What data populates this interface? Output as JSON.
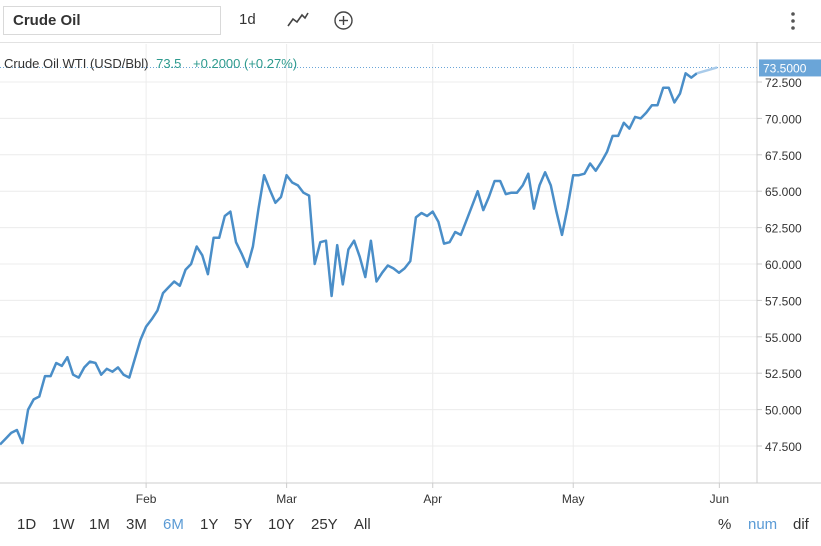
{
  "toolbar": {
    "symbol": "Crude Oil",
    "interval": "1d",
    "icons": [
      "chart-type-icon",
      "add-indicator-icon",
      "more-options-icon"
    ]
  },
  "legend": {
    "name": "Crude Oil WTI (USD/Bbl)",
    "price": "73.5",
    "change": "+0.2000 (+0.27%)"
  },
  "last_price_label": "73.5000",
  "ranges": [
    {
      "label": "1D",
      "active": false
    },
    {
      "label": "1W",
      "active": false
    },
    {
      "label": "1M",
      "active": false
    },
    {
      "label": "3M",
      "active": false
    },
    {
      "label": "6M",
      "active": true
    },
    {
      "label": "1Y",
      "active": false
    },
    {
      "label": "5Y",
      "active": false
    },
    {
      "label": "10Y",
      "active": false
    },
    {
      "label": "25Y",
      "active": false
    },
    {
      "label": "All",
      "active": false
    }
  ],
  "modes": [
    {
      "label": "%",
      "active": false
    },
    {
      "label": "num",
      "active": true
    },
    {
      "label": "dif",
      "active": false
    }
  ],
  "colors": {
    "line": "#4a8ec8",
    "up": "#2e9a8e",
    "price_tag": "#6aa5d8",
    "grid": "#ececec",
    "axis": "#cccccc"
  },
  "chart_data": {
    "type": "line",
    "series_name": "Crude Oil WTI (USD/Bbl)",
    "ylim": [
      45,
      77
    ],
    "yticks": [
      "47.500",
      "50.000",
      "52.500",
      "55.000",
      "57.500",
      "60.000",
      "62.500",
      "65.000",
      "67.500",
      "70.000",
      "72.500"
    ],
    "ytick_values": [
      47.5,
      50.0,
      52.5,
      55.0,
      57.5,
      60.0,
      62.5,
      65.0,
      67.5,
      70.0,
      72.5
    ],
    "xticks": [
      "Feb",
      "Mar",
      "Apr",
      "May",
      "Jun"
    ],
    "xtick_index": [
      26,
      51,
      77,
      102,
      128
    ],
    "last_value": 73.5,
    "values": [
      47.6,
      48.0,
      48.4,
      48.6,
      47.7,
      50.0,
      50.7,
      50.9,
      52.3,
      52.3,
      53.2,
      53.0,
      53.6,
      52.4,
      52.2,
      52.9,
      53.3,
      53.2,
      52.4,
      52.8,
      52.6,
      52.9,
      52.4,
      52.2,
      53.5,
      54.8,
      55.7,
      56.2,
      56.8,
      58.0,
      58.4,
      58.8,
      58.5,
      59.6,
      60.0,
      61.2,
      60.6,
      59.3,
      61.8,
      61.8,
      63.3,
      63.6,
      61.5,
      60.7,
      59.8,
      61.2,
      63.8,
      66.1,
      65.1,
      64.2,
      64.6,
      66.1,
      65.6,
      65.4,
      64.9,
      64.7,
      60.0,
      61.5,
      61.6,
      57.8,
      61.3,
      58.6,
      61.0,
      61.6,
      60.5,
      59.1,
      61.6,
      58.8,
      59.4,
      59.9,
      59.7,
      59.4,
      59.7,
      60.2,
      63.2,
      63.5,
      63.3,
      63.6,
      62.9,
      61.4,
      61.5,
      62.2,
      62.0,
      63.0,
      64.0,
      65.0,
      63.7,
      64.6,
      65.7,
      65.7,
      64.8,
      64.9,
      64.9,
      65.4,
      66.2,
      63.8,
      65.4,
      66.3,
      65.4,
      63.6,
      62.0,
      63.9,
      66.1,
      66.1,
      66.2,
      66.9,
      66.4,
      67.0,
      67.7,
      68.8,
      68.8,
      69.7,
      69.3,
      70.1,
      70.0,
      70.4,
      70.9,
      70.9,
      72.1,
      72.1,
      71.1,
      71.7,
      73.1,
      72.8,
      73.1
    ],
    "forecast_values": [
      73.1,
      73.5
    ],
    "title": "",
    "xlabel": "",
    "ylabel": ""
  }
}
